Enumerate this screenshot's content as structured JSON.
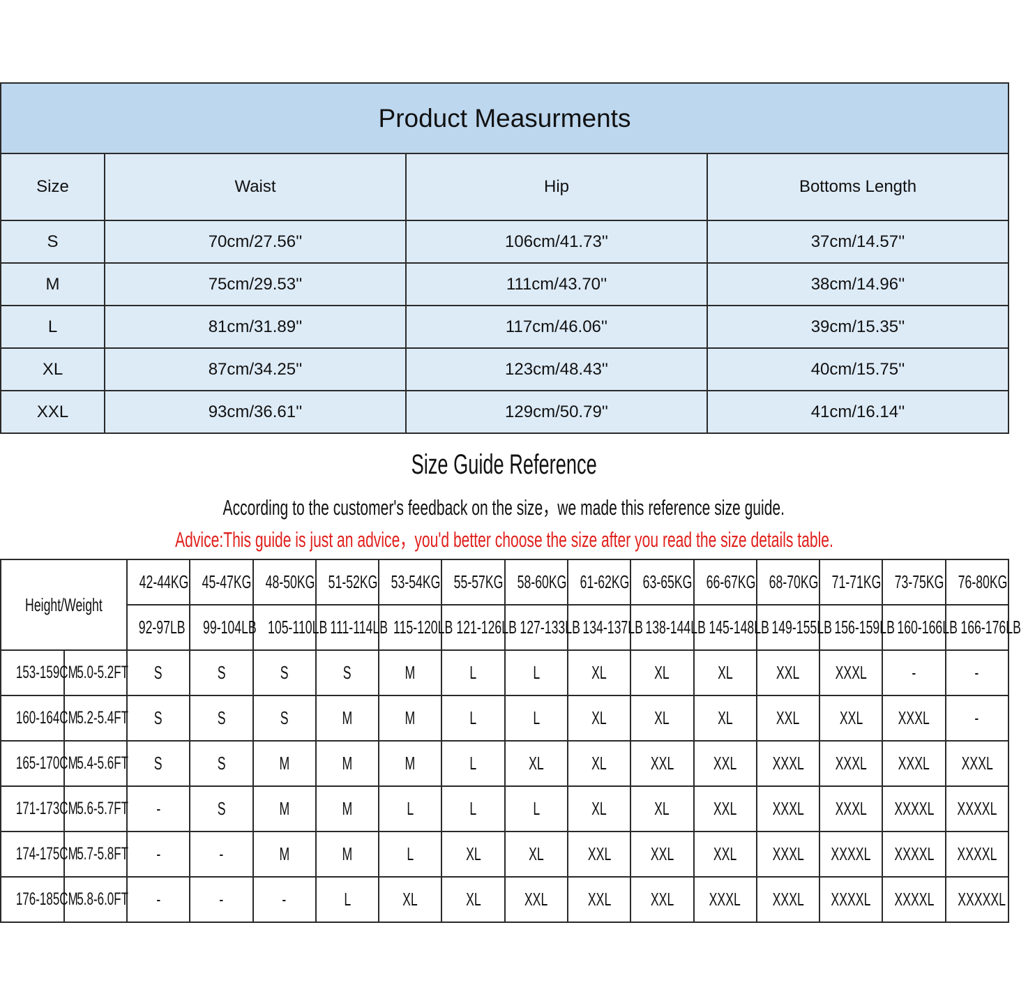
{
  "measurements": {
    "title": "Product Measurments",
    "headers": [
      "Size",
      "Waist",
      "Hip",
      "Bottoms Length"
    ],
    "rows": [
      [
        "S",
        "70cm/27.56''",
        "106cm/41.73''",
        "37cm/14.57''"
      ],
      [
        "M",
        "75cm/29.53''",
        "111cm/43.70''",
        "38cm/14.96''"
      ],
      [
        "L",
        "81cm/31.89''",
        "117cm/46.06''",
        "39cm/15.35''"
      ],
      [
        "XL",
        "87cm/34.25''",
        "123cm/48.43''",
        "40cm/15.75''"
      ],
      [
        "XXL",
        "93cm/36.61''",
        "129cm/50.79''",
        "41cm/16.14''"
      ]
    ]
  },
  "guide": {
    "title": "Size Guide Reference",
    "note": "According to the customer's feedback on the size，we made this reference size guide.",
    "advice": "Advice:This guide is just an advice，you'd better choose the size after you read the size details table.",
    "advice_color": "#e0201c",
    "corner_label": "Height/Weight",
    "weights_kg": [
      "42-44KG",
      "45-47KG",
      "48-50KG",
      "51-52KG",
      "53-54KG",
      "55-57KG",
      "58-60KG",
      "61-62KG",
      "63-65KG",
      "66-67KG",
      "68-70KG",
      "71-71KG",
      "73-75KG",
      "76-80KG"
    ],
    "weights_lb": [
      "92-97LB",
      "99-104LB",
      "105-110LB",
      "111-114LB",
      "115-120LB",
      "121-126LB",
      "127-133LB",
      "134-137LB",
      "138-144LB",
      "145-148LB",
      "149-155LB",
      "156-159LB",
      "160-166LB",
      "166-176LB"
    ],
    "rows": [
      {
        "cm": "153-159CM",
        "ft": "5.0-5.2FT",
        "sizes": [
          "S",
          "S",
          "S",
          "S",
          "M",
          "L",
          "L",
          "XL",
          "XL",
          "XL",
          "XXL",
          "XXXL",
          "-",
          "-"
        ]
      },
      {
        "cm": "160-164CM",
        "ft": "5.2-5.4FT",
        "sizes": [
          "S",
          "S",
          "S",
          "M",
          "M",
          "L",
          "L",
          "XL",
          "XL",
          "XL",
          "XXL",
          "XXL",
          "XXXL",
          "-"
        ]
      },
      {
        "cm": "165-170CM",
        "ft": "5.4-5.6FT",
        "sizes": [
          "S",
          "S",
          "M",
          "M",
          "M",
          "L",
          "XL",
          "XL",
          "XXL",
          "XXL",
          "XXXL",
          "XXXL",
          "XXXL",
          "XXXL"
        ]
      },
      {
        "cm": "171-173CM",
        "ft": "5.6-5.7FT",
        "sizes": [
          "-",
          "S",
          "M",
          "M",
          "L",
          "L",
          "L",
          "XL",
          "XL",
          "XXL",
          "XXXL",
          "XXXL",
          "XXXXL",
          "XXXXL"
        ]
      },
      {
        "cm": "174-175CM",
        "ft": "5.7-5.8FT",
        "sizes": [
          "-",
          "-",
          "M",
          "M",
          "L",
          "XL",
          "XL",
          "XXL",
          "XXL",
          "XXL",
          "XXXL",
          "XXXXL",
          "XXXXL",
          "XXXXL"
        ]
      },
      {
        "cm": "176-185CM",
        "ft": "5.8-6.0FT",
        "sizes": [
          "-",
          "-",
          "-",
          "L",
          "XL",
          "XL",
          "XXL",
          "XXL",
          "XXL",
          "XXXL",
          "XXXL",
          "XXXXL",
          "XXXXL",
          "XXXXXL"
        ]
      }
    ]
  },
  "colors": {
    "title_bg": "#bdd7ee",
    "cell_bg": "#ddebf7"
  }
}
